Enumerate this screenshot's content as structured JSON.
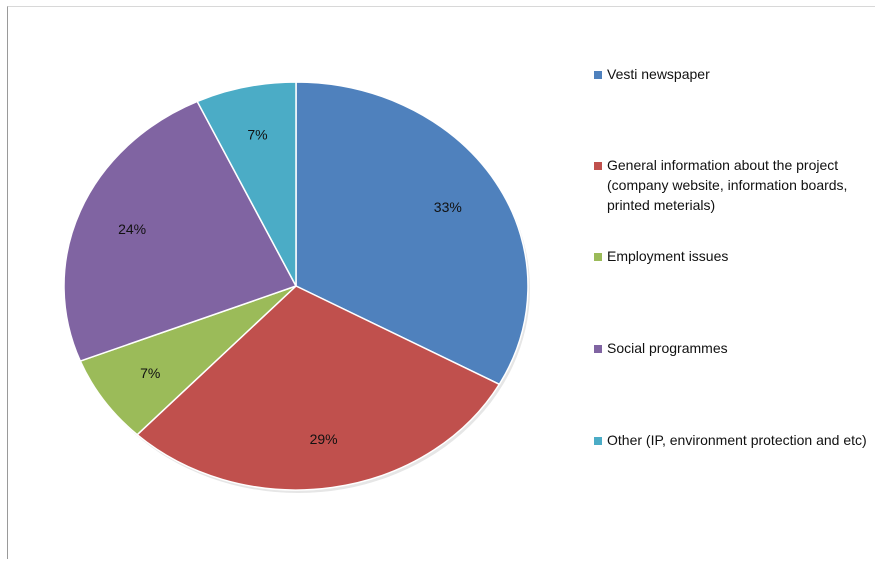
{
  "chart_data": {
    "type": "pie",
    "categories": [
      "Vesti newspaper",
      "General information about the project (company website, information boards, printed meterials)",
      "Employment issues",
      "Social programmes",
      "Other (IP, environment protection and etc)"
    ],
    "values": [
      33,
      29,
      7,
      24,
      7
    ],
    "data_labels": [
      "33%",
      "29%",
      "7%",
      "24%",
      "7%"
    ],
    "colors": [
      "#4f81bd",
      "#c0504d",
      "#9bbb59",
      "#8064a2",
      "#4bacc6"
    ],
    "title": "",
    "legend_position": "right"
  }
}
